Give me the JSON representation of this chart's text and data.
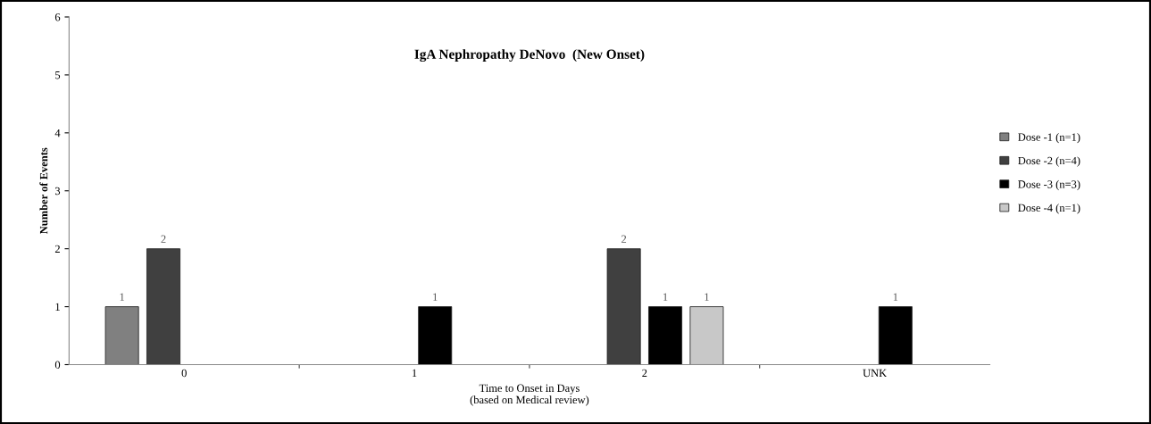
{
  "chart_data": {
    "type": "bar",
    "title": "IgA Nephropathy DeNovo  (New Onset)",
    "xlabel": "Time to Onset in Days\n(based on Medical review)",
    "ylabel": "Number of Events",
    "categories": [
      "0",
      "1",
      "2",
      "UNK"
    ],
    "series": [
      {
        "name": "Dose -1 (n=1)",
        "color": "#808080",
        "values": [
          1,
          null,
          null,
          null
        ]
      },
      {
        "name": "Dose -2 (n=4)",
        "color": "#404040",
        "values": [
          2,
          null,
          2,
          null
        ]
      },
      {
        "name": "Dose -3 (n=3)",
        "color": "#000000",
        "values": [
          null,
          1,
          1,
          1
        ]
      },
      {
        "name": "Dose -4 (n=1)",
        "color": "#c8c8c8",
        "values": [
          null,
          null,
          1,
          null
        ]
      }
    ],
    "ylim": [
      0,
      6
    ],
    "yticks": [
      0,
      1,
      2,
      3,
      4,
      5,
      6
    ],
    "data_labels": true,
    "grid": false,
    "legend": "right"
  }
}
